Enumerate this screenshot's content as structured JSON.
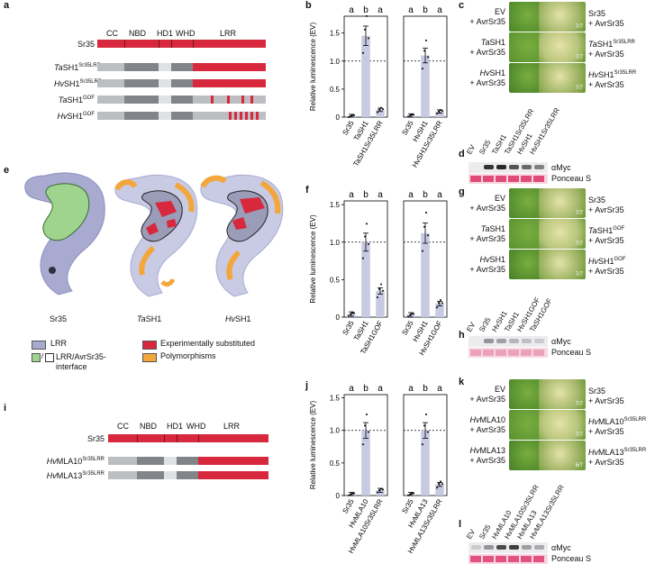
{
  "panels": {
    "a": "a",
    "b": "b",
    "c": "c",
    "d": "d",
    "e": "e",
    "f": "f",
    "g": "g",
    "h": "h",
    "i": "i",
    "j": "j",
    "k": "k",
    "l": "l"
  },
  "domains_a": {
    "cc": "CC",
    "nbd": "NBD",
    "hd1": "HD1",
    "whd": "WHD",
    "lrr": "LRR"
  },
  "domains_i": {
    "cc": "CC",
    "nbd": "NBD",
    "hd1": "HD1",
    "whd": "WHD",
    "lrr": "LRR"
  },
  "constructs_a": [
    {
      "pre": "",
      "base": "Sr35",
      "sup": ""
    },
    {
      "pre": "Ta",
      "base": "SH1",
      "sup": "Sr35LRR"
    },
    {
      "pre": "Hv",
      "base": "SH1",
      "sup": "Sr35LRR"
    },
    {
      "pre": "Ta",
      "base": "SH1",
      "sup": "GOF"
    },
    {
      "pre": "Hv",
      "base": "SH1",
      "sup": "GOF"
    }
  ],
  "constructs_i": [
    {
      "pre": "",
      "base": "Sr35",
      "sup": ""
    },
    {
      "pre": "Hv",
      "base": "MLA10",
      "sup": "Sr35LRR"
    },
    {
      "pre": "Hv",
      "base": "MLA13",
      "sup": "Sr35LRR"
    }
  ],
  "ylabel": "Relative luminescence (EV)",
  "yticks": [
    "0",
    "0.5",
    "1.0",
    "1.5"
  ],
  "chart_data": [
    {
      "panel": "b",
      "type": "bar",
      "ylabel": "Relative luminescence (EV)",
      "ylim": [
        0,
        1.8
      ],
      "groups": [
        {
          "categories": [
            "Sr35",
            "TaSH1",
            "TaSH1Sr35LRR"
          ],
          "values": [
            0.02,
            1.45,
            0.13
          ],
          "letters": [
            "a",
            "b",
            "a"
          ]
        },
        {
          "categories": [
            "Sr35",
            "HvSH1",
            "HvSH1Sr35LRR"
          ],
          "values": [
            0.03,
            1.1,
            0.1
          ],
          "letters": [
            "a",
            "b",
            "a"
          ]
        }
      ]
    },
    {
      "panel": "f",
      "type": "bar",
      "ylabel": "Relative luminescence (EV)",
      "ylim": [
        0,
        1.55
      ],
      "groups": [
        {
          "categories": [
            "Sr35",
            "TaSH1",
            "TaSH1GOF"
          ],
          "values": [
            0.04,
            1.0,
            0.35
          ],
          "letters": [
            "a",
            "b",
            "a"
          ]
        },
        {
          "categories": [
            "Sr35",
            "HvSH1",
            "HvSH1GOF"
          ],
          "values": [
            0.03,
            1.12,
            0.18
          ],
          "letters": [
            "a",
            "b",
            "a"
          ]
        }
      ]
    },
    {
      "panel": "j",
      "type": "bar",
      "ylabel": "Relative luminescence (EV)",
      "ylim": [
        0,
        1.55
      ],
      "groups": [
        {
          "categories": [
            "Sr35",
            "HvMLA10",
            "HvMLA10Sr35LRR"
          ],
          "values": [
            0.02,
            1.0,
            0.08
          ],
          "letters": [
            "a",
            "b",
            "a"
          ]
        },
        {
          "categories": [
            "Sr35",
            "HvMLA13",
            "HvMLA13Sr35LRR"
          ],
          "values": [
            0.02,
            1.0,
            0.17
          ],
          "letters": [
            "a",
            "b",
            "a"
          ]
        }
      ]
    }
  ],
  "leaf_panels": {
    "c": {
      "left": [
        {
          "pre": "",
          "base": "EV",
          "sup": "",
          "ratio": "0/7"
        },
        {
          "pre": "Ta",
          "base": "SH1",
          "sup": "",
          "ratio": "0/7"
        },
        {
          "pre": "Hv",
          "base": "SH1",
          "sup": "",
          "ratio": "0/7"
        }
      ],
      "right": [
        {
          "pre": "",
          "base": "Sr35",
          "sup": "",
          "ratio": "7/7"
        },
        {
          "pre": "Ta",
          "base": "SH1",
          "sup": "Sr35LRR",
          "ratio": "7/7"
        },
        {
          "pre": "Hv",
          "base": "SH1",
          "sup": "Sr35LRR",
          "ratio": "7/7"
        }
      ]
    },
    "g": {
      "left": [
        {
          "pre": "",
          "base": "EV",
          "sup": "",
          "ratio": "0/7"
        },
        {
          "pre": "Ta",
          "base": "SH1",
          "sup": "",
          "ratio": "1/7"
        },
        {
          "pre": "Hv",
          "base": "SH1",
          "sup": "",
          "ratio": "0/7"
        }
      ],
      "right": [
        {
          "pre": "",
          "base": "Sr35",
          "sup": "",
          "ratio": "7/7"
        },
        {
          "pre": "Ta",
          "base": "SH1",
          "sup": "GOF",
          "ratio": "7/7"
        },
        {
          "pre": "Hv",
          "base": "SH1",
          "sup": "GOF",
          "ratio": "7/7"
        }
      ]
    },
    "k": {
      "left": [
        {
          "pre": "",
          "base": "EV",
          "sup": "",
          "ratio": "0/7"
        },
        {
          "pre": "Hv",
          "base": "MLA10",
          "sup": "",
          "ratio": "2/7"
        },
        {
          "pre": "Hv",
          "base": "MLA13",
          "sup": "",
          "ratio": "0/7"
        }
      ],
      "right": [
        {
          "pre": "",
          "base": "Sr35",
          "sup": "",
          "ratio": "7/7"
        },
        {
          "pre": "Hv",
          "base": "MLA10",
          "sup": "Sr35LRR",
          "ratio": "7/7"
        },
        {
          "pre": "Hv",
          "base": "MLA13",
          "sup": "Sr35LRR",
          "ratio": "6/7"
        }
      ]
    },
    "suffix": "+ AvrSr35"
  },
  "blots": {
    "d": {
      "lanes": [
        "EV",
        "Sr35",
        "TaSH1",
        "TaSH1Sr35LRR",
        "HvSH1",
        "HvSH1Sr35LRR"
      ]
    },
    "h": {
      "lanes": [
        "EV",
        "Sr35",
        "HvSH1",
        "TaSH1",
        "HvSH1GOF",
        "TaSH1GOF"
      ]
    },
    "l": {
      "lanes": [
        "EV",
        "Sr35",
        "HvMLA10",
        "HvMLA10Sr35LRR",
        "HvMLA13",
        "HvMLA13Sr35LRR"
      ]
    },
    "amyc": "αMyc",
    "ponceau": "Ponceau S"
  },
  "structures": {
    "labels": [
      {
        "pre": "",
        "base": "Sr35"
      },
      {
        "pre": "Ta",
        "base": "SH1"
      },
      {
        "pre": "Hv",
        "base": "SH1"
      }
    ]
  },
  "legend": {
    "lrr": "LRR",
    "exp": "Experimentally substituted",
    "interface": "LRR/AvrSr35-\ninterface",
    "poly": "Polymorphisms"
  },
  "colors": {
    "red": "#d7283d",
    "grey": "#bdbec2",
    "darkgrey": "#838489",
    "bar": "#c8c9e3",
    "lrr_lavender": "#a8aad0",
    "green": "#9fd48f",
    "orange": "#f3a63a",
    "pink": "#e8709a"
  }
}
